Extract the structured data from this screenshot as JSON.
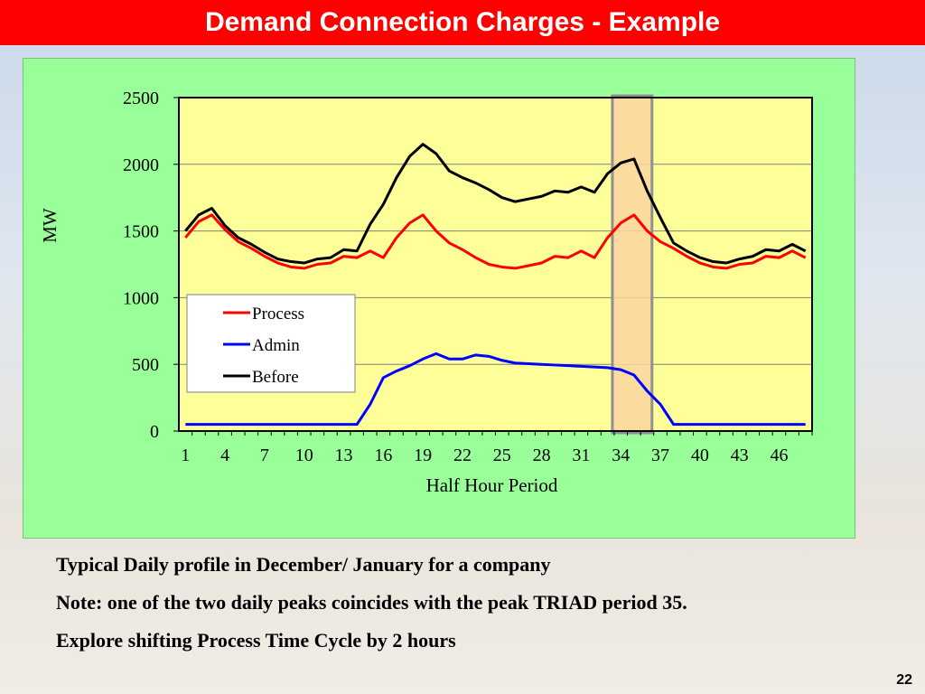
{
  "slide": {
    "title": "Demand Connection Charges - Example",
    "page_number": "22",
    "notes": [
      "Typical Daily profile in December/ January for a company",
      "Note: one of the two daily peaks coincides with the peak TRIAD period 35.",
      "Explore shifting Process Time Cycle by 2 hours"
    ]
  },
  "colors": {
    "title_bar": "#ff0000",
    "panel": "#99ff99",
    "plot_area": "#ffff99",
    "highlight": "#fcd5a0",
    "process": "#ff0000",
    "admin": "#0000ff",
    "before": "#000000"
  },
  "chart_data": {
    "type": "line",
    "title": "",
    "xlabel": "Half Hour Period",
    "ylabel": "MW",
    "x": [
      1,
      2,
      3,
      4,
      5,
      6,
      7,
      8,
      9,
      10,
      11,
      12,
      13,
      14,
      15,
      16,
      17,
      18,
      19,
      20,
      21,
      22,
      23,
      24,
      25,
      26,
      27,
      28,
      29,
      30,
      31,
      32,
      33,
      34,
      35,
      36,
      37,
      38,
      39,
      40,
      41,
      42,
      43,
      44,
      45,
      46,
      47,
      48
    ],
    "x_tick_labels": [
      "1",
      "4",
      "7",
      "10",
      "13",
      "16",
      "19",
      "22",
      "25",
      "28",
      "31",
      "34",
      "37",
      "40",
      "43",
      "46"
    ],
    "ylim": [
      0,
      2500
    ],
    "y_ticks": [
      "0",
      "500",
      "1000",
      "1500",
      "2000",
      "2500"
    ],
    "grid": true,
    "legend": "inside-left",
    "highlight_period": [
      34,
      36
    ],
    "series": [
      {
        "name": "Process",
        "color": "#ff0000",
        "values": [
          1450,
          1570,
          1620,
          1510,
          1420,
          1370,
          1310,
          1260,
          1230,
          1220,
          1250,
          1260,
          1310,
          1300,
          1350,
          1300,
          1450,
          1560,
          1620,
          1500,
          1410,
          1360,
          1300,
          1250,
          1230,
          1220,
          1240,
          1260,
          1310,
          1300,
          1350,
          1300,
          1450,
          1560,
          1620,
          1500,
          1420,
          1370,
          1310,
          1260,
          1230,
          1220,
          1250,
          1260,
          1310,
          1300,
          1350,
          1300
        ]
      },
      {
        "name": "Admin",
        "color": "#0000ff",
        "values": [
          50,
          50,
          50,
          50,
          50,
          50,
          50,
          50,
          50,
          50,
          50,
          50,
          50,
          50,
          200,
          400,
          450,
          490,
          540,
          580,
          540,
          540,
          570,
          560,
          530,
          510,
          505,
          500,
          495,
          490,
          485,
          480,
          475,
          460,
          420,
          300,
          200,
          50,
          50,
          50,
          50,
          50,
          50,
          50,
          50,
          50,
          50,
          50
        ]
      },
      {
        "name": "Before",
        "color": "#000000",
        "values": [
          1500,
          1620,
          1670,
          1540,
          1450,
          1400,
          1340,
          1290,
          1270,
          1260,
          1290,
          1300,
          1360,
          1350,
          1550,
          1700,
          1900,
          2060,
          2150,
          2080,
          1950,
          1900,
          1860,
          1810,
          1750,
          1720,
          1740,
          1760,
          1800,
          1790,
          1830,
          1790,
          1930,
          2010,
          2040,
          1800,
          1600,
          1410,
          1350,
          1300,
          1270,
          1260,
          1290,
          1310,
          1360,
          1350,
          1400,
          1350
        ]
      }
    ]
  }
}
